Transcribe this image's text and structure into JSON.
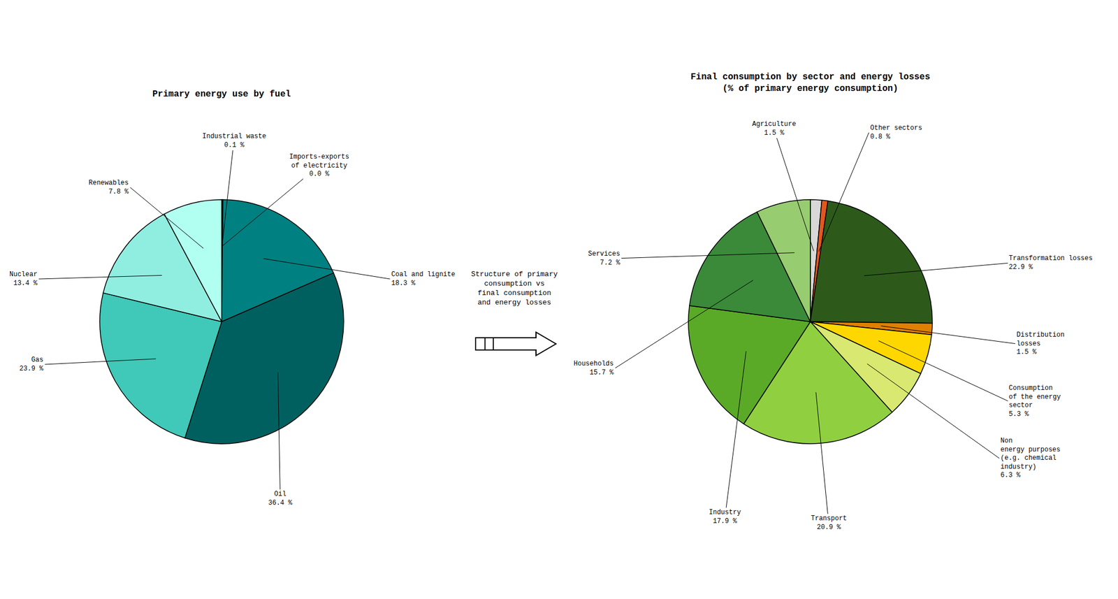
{
  "chart_data": [
    {
      "type": "pie",
      "title": "Primary energy use by fuel",
      "categories": [
        "Industrial waste",
        "Imports-exports\nof electricity",
        "Coal and lignite",
        "Oil",
        "Gas",
        "Nuclear",
        "Renewables"
      ],
      "values": [
        0.1,
        0.05,
        18.3,
        36.4,
        23.9,
        13.4,
        7.8
      ],
      "value_labels": [
        "0.1 %",
        "0.0 %",
        "18.3 %",
        "36.4 %",
        "23.9 %",
        "13.4 %",
        "7.8 %"
      ],
      "colors": [
        "#C8C8C8",
        "#006868",
        "#008080",
        "#006060",
        "#40C8B8",
        "#90EEE0",
        "#B0FFF0"
      ],
      "data_labels": true,
      "annotations": [
        "Structure of primary\nconsumption vs\nfinal consumption\nand energy losses"
      ]
    },
    {
      "type": "pie",
      "title": "Final consumption by sector and energy losses\n(% of primary energy consumption)",
      "categories": [
        "Agriculture",
        "Other sectors",
        "Transformation losses",
        "Distribution\nlosses",
        "Consumption\nof the energy\nsector",
        "Non\nenergy purposes\n(e.g. chemical\nindustry)",
        "Transport",
        "Industry",
        "Households",
        "Services"
      ],
      "values": [
        1.5,
        0.8,
        22.9,
        1.5,
        5.3,
        6.3,
        20.9,
        17.9,
        15.7,
        7.2
      ],
      "value_labels": [
        "1.5 %",
        "0.8 %",
        "22.9 %",
        "1.5 %",
        "5.3 %",
        "6.3 %",
        "20.9 %",
        "17.9 %",
        "15.7 %",
        "7.2 %"
      ],
      "colors": [
        "#D8D8D8",
        "#E05820",
        "#2D5A1B",
        "#E08000",
        "#FFD700",
        "#D8E870",
        "#90D040",
        "#5AAA28",
        "#3A8A3A",
        "#98CC70"
      ],
      "data_labels": true
    }
  ]
}
